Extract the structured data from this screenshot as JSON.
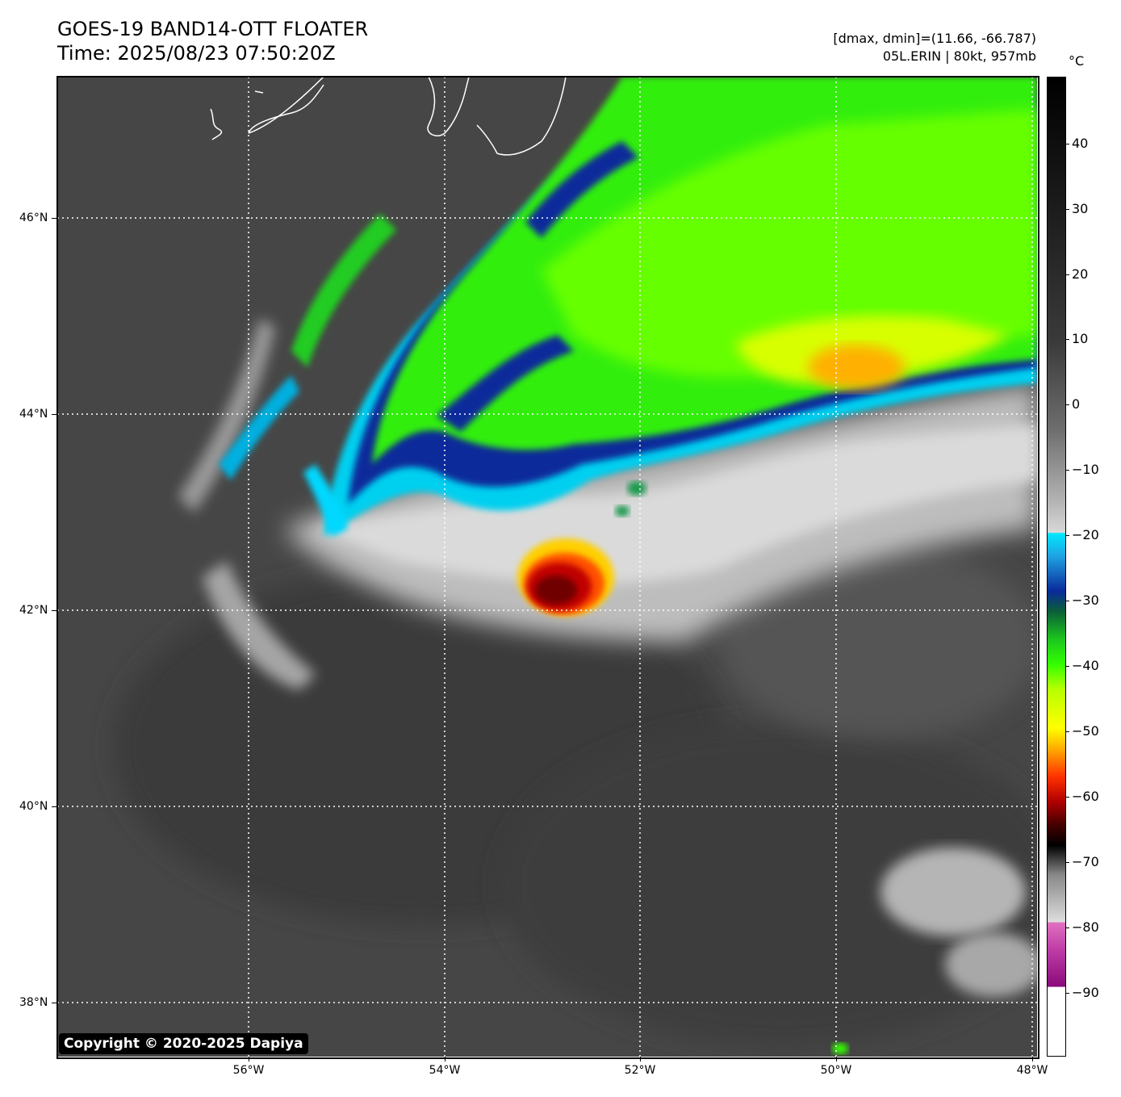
{
  "header": {
    "title": "GOES-19 BAND14-OTT FLOATER",
    "time": "Time: 2025/08/23 07:50:20Z",
    "range": "[dmax, dmin]=(11.66, -66.787)",
    "storm": "05L.ERIN | 80kt, 957mb"
  },
  "map": {
    "lat_ticks": [
      "46°N",
      "44°N",
      "42°N",
      "40°N",
      "38°N"
    ],
    "lon_ticks": [
      "56°W",
      "54°W",
      "52°W",
      "50°W",
      "48°W"
    ],
    "lat_range": [
      37.6,
      47.6
    ],
    "lon_range": [
      -57.95,
      -48.0
    ],
    "copyright": "Copyright © 2020-2025 Dapiya"
  },
  "colorbar": {
    "unit": "°C",
    "ticks": [
      "40",
      "30",
      "20",
      "10",
      "0",
      "−10",
      "−20",
      "−30",
      "−40",
      "−50",
      "−60",
      "−70",
      "−80",
      "−90"
    ],
    "range": [
      -99,
      50
    ]
  },
  "colors": {
    "background": "#474747",
    "cold_green": "#33ff00",
    "core_red": "#c00000",
    "cyan": "#00e8ff",
    "navy": "#0a2a9a"
  }
}
